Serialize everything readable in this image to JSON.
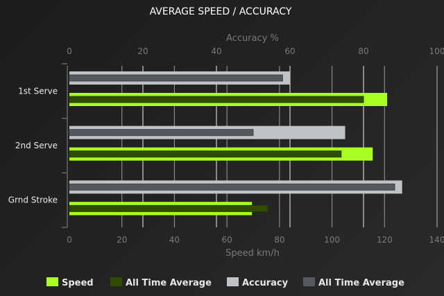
{
  "chart_data": {
    "type": "bar",
    "orientation": "horizontal",
    "title": "AVERAGE SPEED / ACCURACY",
    "categories": [
      "1st Serve",
      "2nd Serve",
      "Grnd Stroke"
    ],
    "top_axis": {
      "label": "Accuracy %",
      "range": [
        0,
        100
      ],
      "ticks": [
        "0",
        "20",
        "40",
        "60",
        "80",
        "100"
      ]
    },
    "bottom_axis": {
      "label": "Speed km/h",
      "range": [
        0,
        140
      ],
      "ticks": [
        "0",
        "20",
        "40",
        "60",
        "80",
        "100",
        "120",
        "140"
      ]
    },
    "grid": true,
    "legend_placement": "bottom",
    "series": [
      {
        "name": "Speed",
        "axis": "bottom",
        "values": [
          121,
          115.5,
          69.5
        ],
        "color": "#aaff22"
      },
      {
        "name": "All Time Average",
        "axis": "bottom",
        "values": [
          112,
          103.5,
          75.5
        ],
        "color": "#2e4d00"
      },
      {
        "name": "Accuracy",
        "axis": "top",
        "values": [
          60,
          75,
          90.5
        ],
        "color": "#bfc3c6"
      },
      {
        "name": "All Time Average",
        "axis": "top",
        "values": [
          58,
          50,
          88.5
        ],
        "color": "#545960"
      }
    ]
  }
}
